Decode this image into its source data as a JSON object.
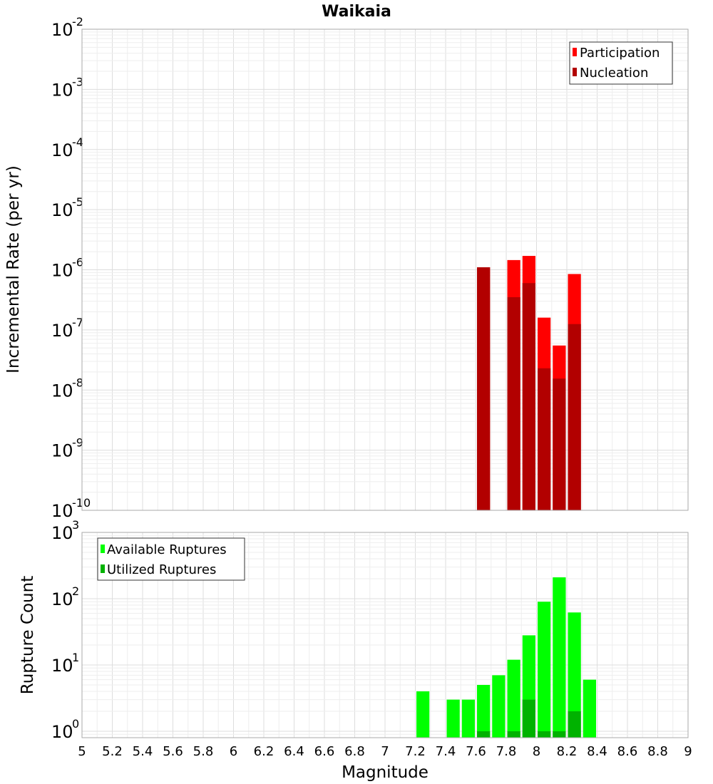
{
  "colors": {
    "participation": "#ff0000",
    "nucleation": "#b20000",
    "available": "#00ff00",
    "utilized": "#00b200"
  },
  "chart_data": [
    {
      "type": "bar",
      "title": "Waikaia",
      "xlabel": "",
      "ylabel": "Incremental Rate (per yr)",
      "y_scale": "log",
      "ylim": [
        1e-10,
        0.01
      ],
      "xlim": [
        5,
        9
      ],
      "grid": true,
      "legend_position": "top-right",
      "y_tick_labels": [
        {
          "value": 1e-10,
          "base": "10",
          "exp": "-10"
        },
        {
          "value": 1e-09,
          "base": "10",
          "exp": "-9"
        },
        {
          "value": 1e-08,
          "base": "10",
          "exp": "-8"
        },
        {
          "value": 1e-07,
          "base": "10",
          "exp": "-7"
        },
        {
          "value": 1e-06,
          "base": "10",
          "exp": "-6"
        },
        {
          "value": 1e-05,
          "base": "10",
          "exp": "-5"
        },
        {
          "value": 0.0001,
          "base": "10",
          "exp": "-4"
        },
        {
          "value": 0.001,
          "base": "10",
          "exp": "-3"
        },
        {
          "value": 0.01,
          "base": "10",
          "exp": "-2"
        }
      ],
      "bin_width": 0.1,
      "series": [
        {
          "name": "Participation",
          "color": "#ff0000",
          "x": [
            7.65,
            7.85,
            7.95,
            8.05,
            8.15,
            8.25
          ],
          "values": [
            1.1e-06,
            1.45e-06,
            1.7e-06,
            1.6e-07,
            5.5e-08,
            8.5e-07
          ]
        },
        {
          "name": "Nucleation",
          "color": "#b20000",
          "x": [
            7.65,
            7.85,
            7.95,
            8.05,
            8.15,
            8.25
          ],
          "values": [
            1.1e-06,
            3.5e-07,
            6e-07,
            2.3e-08,
            1.55e-08,
            1.25e-07
          ]
        }
      ]
    },
    {
      "type": "bar",
      "title": "",
      "xlabel": "Magnitude",
      "ylabel": "Rupture Count",
      "y_scale": "log",
      "ylim": [
        0.8,
        1000
      ],
      "xlim": [
        5,
        9
      ],
      "grid": true,
      "legend_position": "top-left",
      "x_tick_labels": [
        "5",
        "5.2",
        "5.4",
        "5.6",
        "5.8",
        "6",
        "6.2",
        "6.4",
        "6.6",
        "6.8",
        "7",
        "7.2",
        "7.4",
        "7.6",
        "7.8",
        "8",
        "8.2",
        "8.4",
        "8.6",
        "8.8",
        "9"
      ],
      "x_ticks": [
        5,
        5.2,
        5.4,
        5.6,
        5.8,
        6,
        6.2,
        6.4,
        6.6,
        6.8,
        7,
        7.2,
        7.4,
        7.6,
        7.8,
        8,
        8.2,
        8.4,
        8.6,
        8.8,
        9
      ],
      "y_tick_labels": [
        {
          "value": 1,
          "base": "10",
          "exp": "0"
        },
        {
          "value": 10,
          "base": "10",
          "exp": "1"
        },
        {
          "value": 100,
          "base": "10",
          "exp": "2"
        },
        {
          "value": 1000,
          "base": "10",
          "exp": "3"
        }
      ],
      "bin_width": 0.1,
      "series": [
        {
          "name": "Available Ruptures",
          "color": "#00ff00",
          "x": [
            7.25,
            7.45,
            7.55,
            7.65,
            7.75,
            7.85,
            7.95,
            8.05,
            8.15,
            8.25,
            8.35
          ],
          "values": [
            4,
            3,
            3,
            5,
            7,
            12,
            28,
            90,
            210,
            62,
            6
          ]
        },
        {
          "name": "Utilized Ruptures",
          "color": "#00b200",
          "x": [
            7.65,
            7.85,
            7.95,
            8.05,
            8.15,
            8.25
          ],
          "values": [
            1,
            1,
            3,
            1,
            1,
            2
          ]
        }
      ]
    }
  ]
}
